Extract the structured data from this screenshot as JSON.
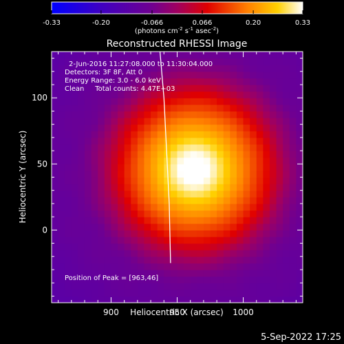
{
  "chart_data": {
    "type": "heatmap",
    "title": "Reconstructed RHESSI Image",
    "xlabel": "Heliocentric X (arcsec)",
    "ylabel": "Heliocentric Y (arcsec)",
    "xlim": [
      855,
      1045
    ],
    "ylim": [
      -55,
      135
    ],
    "x_ticks": [
      900,
      950,
      1000
    ],
    "y_ticks": [
      0,
      50,
      100
    ],
    "colorbar": {
      "range": [
        -0.33,
        0.33
      ],
      "tick_values": [
        -0.33,
        -0.2,
        -0.066,
        0.066,
        0.2,
        0.33
      ],
      "tick_labels": [
        "-0.33",
        "-0.20",
        "-0.066",
        "0.066",
        "0.20",
        "0.33"
      ],
      "units_prefix": "(photons cm",
      "units_sup1": "-2",
      "units_mid1": " s",
      "units_sup2": "-1",
      "units_mid2": " asec",
      "units_sup3": "-2",
      "units_suffix": ")"
    },
    "peak": {
      "x": 963,
      "y": 46
    },
    "limb_line": [
      [
        937,
        135
      ],
      [
        940,
        100
      ],
      [
        942,
        60
      ],
      [
        944,
        20
      ],
      [
        945,
        -25
      ]
    ],
    "annotations": {
      "time": "2-Jun-2016 11:27:08.000 to 11:30:04.000",
      "detectors": "Detectors: 3F 8F, Att 0",
      "energy": "Energy Range: 3.0 - 6.0 keV",
      "clean": "Clean     Total counts: 4.47E+03",
      "peak_label": "Position of Peak = [963,46]"
    },
    "timestamp": "5-Sep-2022 17:25"
  }
}
